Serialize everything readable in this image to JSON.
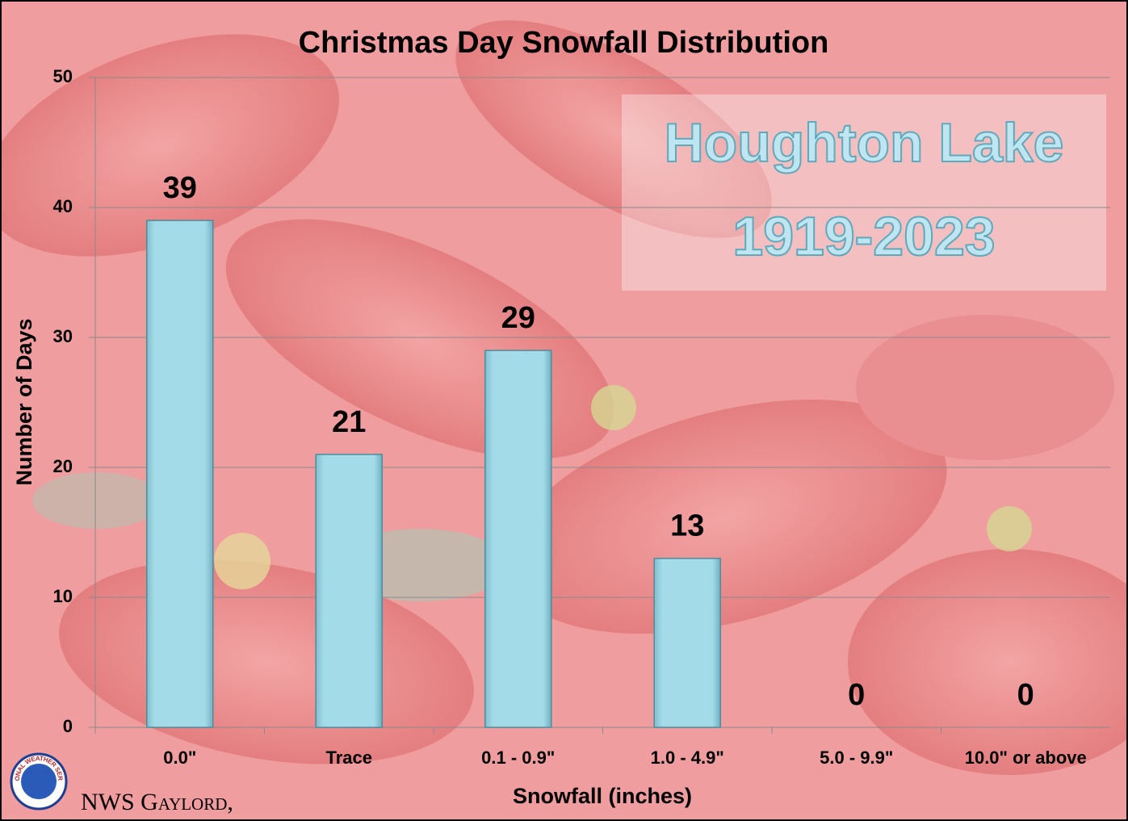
{
  "chart_data": {
    "type": "bar",
    "title": "Christmas Day Snowfall Distribution",
    "x_label": "Snowfall (inches)",
    "y_label": "Number of Days",
    "categories": [
      "0.0\"",
      "Trace",
      "0.1 - 0.9\"",
      "1.0 - 4.9\"",
      "5.0 - 9.9\"",
      "10.0\" or above"
    ],
    "values": [
      39,
      21,
      29,
      13,
      0,
      0
    ],
    "color": "#a3dbe8",
    "ylim": [
      0,
      50
    ],
    "yticks": [
      0,
      10,
      20,
      30,
      40,
      50
    ],
    "grid": true,
    "annotations": [
      "Houghton Lake",
      "1919-2023"
    ],
    "footer": "NWS Gaylord,",
    "logo_text": "NATIONAL WEATHER SERVICE"
  }
}
